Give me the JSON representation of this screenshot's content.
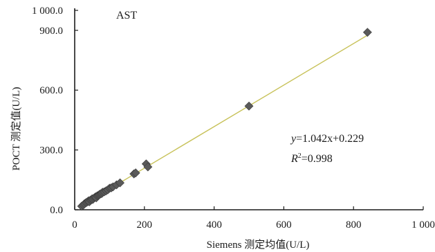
{
  "chart_data": {
    "type": "scatter",
    "title": "AST",
    "xlabel": "Siemens 测定均值(U/L)",
    "ylabel": "POCT 测定值(U/L)",
    "xlim": [
      0,
      1000
    ],
    "ylim": [
      0,
      1000
    ],
    "xticks": [
      0,
      200,
      400,
      600,
      800,
      1000
    ],
    "xtick_labels": [
      "0",
      "200",
      "400",
      "600",
      "800",
      "1 000"
    ],
    "yticks": [
      0,
      300,
      600,
      900,
      1000
    ],
    "ytick_labels": [
      "0.0",
      "300.0",
      "600.0",
      "900.0",
      "1 000.0"
    ],
    "grid": false,
    "legend": "none",
    "trendline": {
      "slope": 1.042,
      "intercept": 0.229,
      "color": "#c8c25a"
    },
    "equation": {
      "y_var": "y",
      "rhs": "=1.042x+0.229",
      "r_var": "R",
      "r_sup": "2",
      "r_rhs": "=0.998"
    },
    "marker_color": "#5a5a5a",
    "x": [
      20,
      25,
      28,
      32,
      35,
      38,
      40,
      42,
      45,
      48,
      50,
      52,
      55,
      58,
      60,
      62,
      65,
      68,
      70,
      72,
      75,
      78,
      80,
      85,
      90,
      95,
      100,
      105,
      110,
      120,
      130,
      170,
      175,
      205,
      210,
      500,
      840
    ],
    "y": [
      18,
      24,
      30,
      35,
      38,
      42,
      45,
      40,
      48,
      50,
      55,
      52,
      58,
      62,
      65,
      60,
      70,
      72,
      75,
      78,
      80,
      82,
      88,
      90,
      95,
      100,
      108,
      110,
      115,
      125,
      135,
      180,
      185,
      230,
      215,
      520,
      890
    ]
  }
}
